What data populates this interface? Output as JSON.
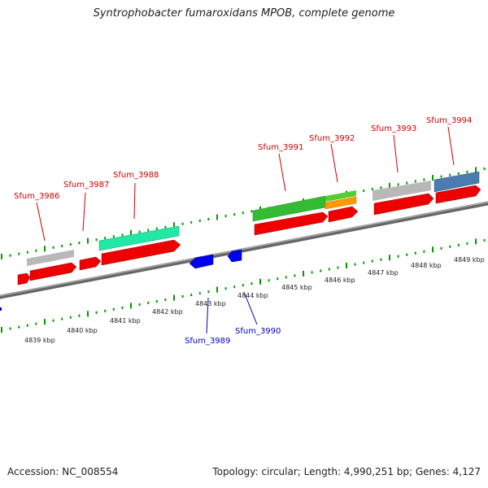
{
  "title": "Syntrophobacter fumaroxidans MPOB, complete genome",
  "footer": {
    "accession": "Accession: NC_008554",
    "summary": "Topology: circular; Length: 4,990,251 bp; Genes: 4,127"
  },
  "colors": {
    "forward_cds": "#ee0000",
    "reverse_cds": "#0000ee",
    "gray_feature": "#b8b8b8",
    "teal_feature": "#22e8a6",
    "green_feature": "#33bb33",
    "orange_feature": "#ff9900",
    "steelblue_feature": "#4a7cb0",
    "backbone": "#888888",
    "tick": "#009900"
  },
  "gene_labels": {
    "forward": [
      "Sfum_3986",
      "Sfum_3987",
      "Sfum_3988",
      "Sfum_3991",
      "Sfum_3992",
      "Sfum_3993",
      "Sfum_3994"
    ],
    "reverse": [
      "Sfum_3989",
      "Sfum_3990"
    ]
  },
  "kbp_labels": [
    "4839 kbp",
    "4840 kbp",
    "4841 kbp",
    "4842 kbp",
    "4843 kbp",
    "4844 kbp",
    "4845 kbp",
    "4846 kbp",
    "4847 kbp",
    "4848 kbp",
    "4849 kbp"
  ]
}
